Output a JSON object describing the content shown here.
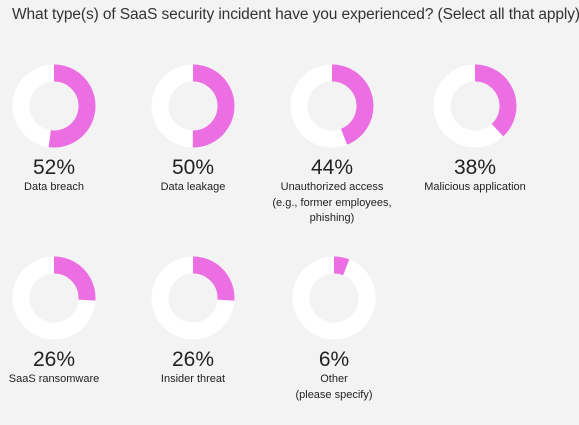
{
  "title": "What type(s) of SaaS security incident have you experienced? (Select all that apply)",
  "colors": {
    "ring": "#ffffff",
    "accent": "#ec6ee3",
    "background": "#f4f3f3"
  },
  "chart_data": {
    "type": "pie",
    "title": "What type(s) of SaaS security incident have you experienced? (Select all that apply)",
    "categories": [
      "Data breach",
      "Data leakage",
      "Unauthorized access (e.g., former employees, phishing)",
      "Malicious application",
      "SaaS ransomware",
      "Insider threat",
      "Other (please specify)"
    ],
    "values": [
      52,
      50,
      44,
      38,
      26,
      26,
      6
    ],
    "unit": "%"
  },
  "items": [
    {
      "pct": "52%",
      "label1": "Data breach",
      "label2": ""
    },
    {
      "pct": "50%",
      "label1": "Data leakage",
      "label2": ""
    },
    {
      "pct": "44%",
      "label1": "Unauthorized access",
      "label2": "(e.g., former employees, phishing)"
    },
    {
      "pct": "38%",
      "label1": "Malicious application",
      "label2": ""
    },
    {
      "pct": "26%",
      "label1": "SaaS ransomware",
      "label2": ""
    },
    {
      "pct": "26%",
      "label1": "Insider threat",
      "label2": ""
    },
    {
      "pct": "6%",
      "label1": "Other",
      "label2": "(please specify)"
    }
  ]
}
